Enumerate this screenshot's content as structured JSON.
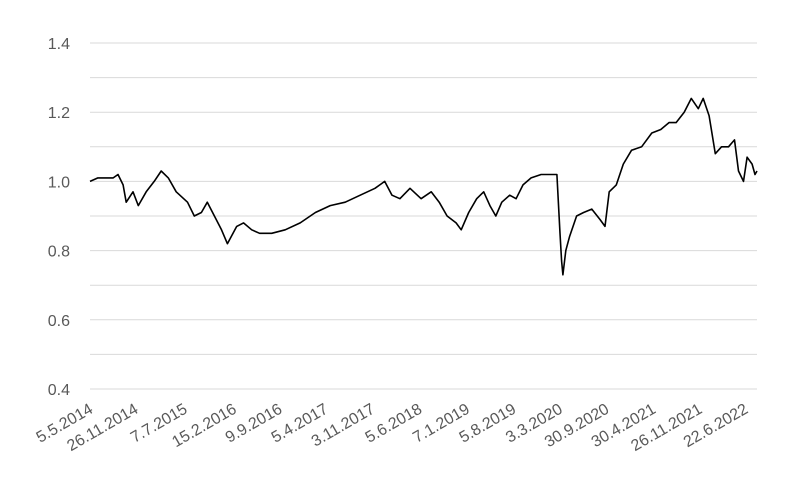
{
  "chart_data": {
    "type": "line",
    "color": "#000000",
    "grid": true,
    "ylim": [
      0.4,
      1.4
    ],
    "yticks": [
      0.4,
      0.6,
      0.8,
      {
        "value": 1.0,
        "label": "1.0"
      },
      1.2,
      1.4
    ],
    "ygrid_minor": [
      0.5,
      0.7,
      0.9,
      1.1,
      1.3
    ],
    "xlim": [
      "5.5.2014",
      "15.8.2022"
    ],
    "xticks": [
      "5.5.2014",
      "26.11.2014",
      "7.7.2015",
      "15.2.2016",
      "9.9.2016",
      "5.4.2017",
      "3.11.2017",
      "5.6.2018",
      "7.1.2019",
      "5.8.2019",
      "3.3.2020",
      "30.9.2020",
      "30.4.2021",
      "26.11.2021",
      "22.6.2022"
    ],
    "x": [
      "5.5.2014",
      "10.6.2014",
      "18.8.2014",
      "9.9.2014",
      "2.10.2014",
      "16.10.2014",
      "16.11.2014",
      "10.12.2014",
      "15.1.2015",
      "20.2.2015",
      "24.3.2015",
      "25.4.2015",
      "31.5.2015",
      "21.7.2015",
      "21.8.2015",
      "22.9.2015",
      "19.10.2015",
      "20.11.2015",
      "22.12.2015",
      "18.1.2016",
      "29.2.2016",
      "31.3.2016",
      "7.5.2016",
      "12.6.2016",
      "6.8.2016",
      "6.10.2016",
      "13.12.2016",
      "20.2.2017",
      "28.4.2017",
      "5.7.2017",
      "11.9.2017",
      "17.11.2017",
      "31.12.2017",
      "2.2.2018",
      "10.3.2018",
      "25.4.2018",
      "14.6.2018",
      "30.7.2018",
      "4.9.2018",
      "10.10.2018",
      "20.11.2018",
      "13.12.2018",
      "16.1.2019",
      "21.2.2019",
      "25.3.2019",
      "22.4.2019",
      "19.5.2019",
      "15.6.2019",
      "21.7.2019",
      "19.8.2019",
      "19.9.2019",
      "26.10.2019",
      "10.12.2019",
      "20.2.2020",
      "5.3.2020",
      "12.3.2020",
      "18.3.2020",
      "31.3.2020",
      "17.4.2020",
      "19.5.2020",
      "20.6.2020",
      "27.7.2020",
      "2.9.2020",
      "25.9.2020",
      "14.10.2020",
      "15.11.2020",
      "17.12.2020",
      "23.1.2021",
      "10.3.2021",
      "25.4.2021",
      "5.6.2021",
      "12.7.2021",
      "13.8.2021",
      "19.9.2021",
      "21.10.2021",
      "22.11.2021",
      "14.12.2021",
      "10.1.2022",
      "7.2.2022",
      "7.3.2022",
      "8.4.2022",
      "5.5.2022",
      "23.5.2022",
      "15.6.2022",
      "1.7.2022",
      "24.7.2022",
      "6.8.2022",
      "15.8.2022"
    ],
    "values": [
      1.0,
      1.01,
      1.01,
      1.02,
      0.99,
      0.94,
      0.97,
      0.93,
      0.97,
      1.0,
      1.03,
      1.01,
      0.97,
      0.94,
      0.9,
      0.91,
      0.94,
      0.9,
      0.86,
      0.82,
      0.87,
      0.88,
      0.86,
      0.85,
      0.85,
      0.86,
      0.88,
      0.91,
      0.93,
      0.94,
      0.96,
      0.98,
      1.0,
      0.96,
      0.95,
      0.98,
      0.95,
      0.97,
      0.94,
      0.9,
      0.88,
      0.86,
      0.91,
      0.95,
      0.97,
      0.93,
      0.9,
      0.94,
      0.96,
      0.95,
      0.99,
      1.01,
      1.02,
      1.02,
      0.85,
      0.77,
      0.73,
      0.8,
      0.84,
      0.9,
      0.91,
      0.92,
      0.89,
      0.87,
      0.97,
      0.99,
      1.05,
      1.09,
      1.1,
      1.14,
      1.15,
      1.17,
      1.17,
      1.2,
      1.24,
      1.21,
      1.24,
      1.19,
      1.08,
      1.1,
      1.1,
      1.12,
      1.03,
      1.0,
      1.07,
      1.05,
      1.02,
      1.03
    ]
  }
}
